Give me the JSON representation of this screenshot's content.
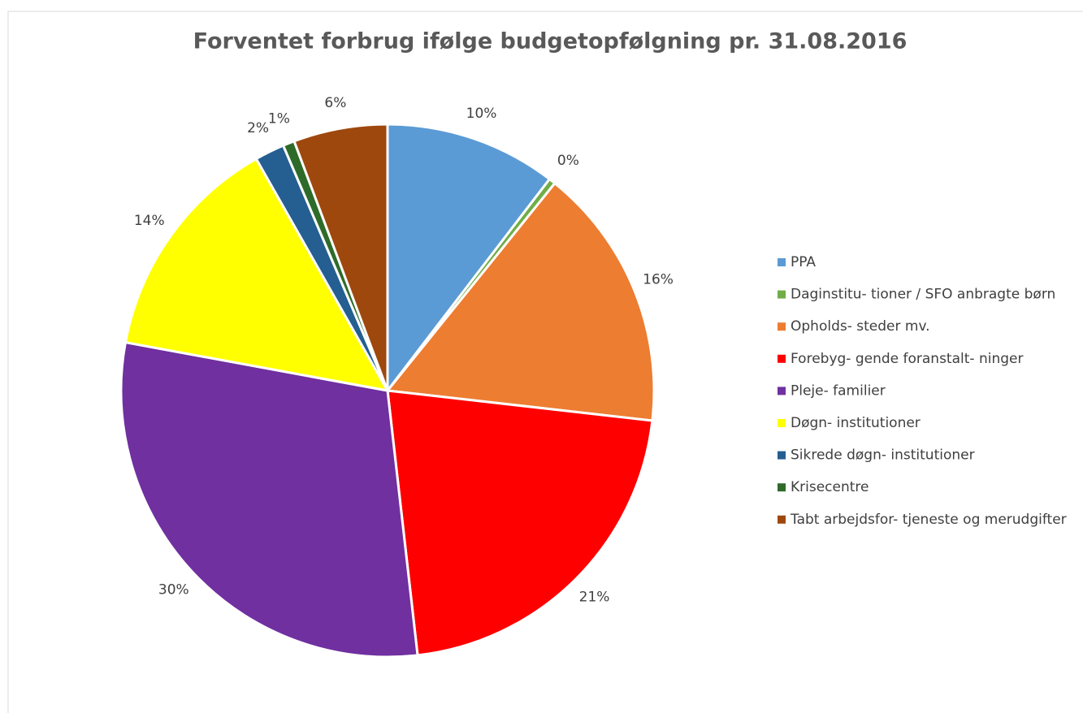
{
  "chart_data": {
    "type": "pie",
    "title": "Forventet forbrug ifølge budgetopfølgning pr. 31.08.2016",
    "categories": [
      "PPA",
      "Daginstitu- tioner / SFO anbragte børn",
      "Opholds- steder mv.",
      "Forebyg- gende foranstalt- ninger",
      "Pleje- familier",
      "Døgn- institutioner",
      "Sikrede døgn- institutioner",
      "Krisecentre",
      "Tabt arbejdsfor- tjeneste og merudgifter"
    ],
    "values": [
      10.4,
      0.4,
      16.0,
      21.4,
      29.7,
      13.9,
      1.8,
      0.7,
      5.7
    ],
    "value_labels": [
      "10%",
      "0%",
      "16%",
      "21%",
      "30%",
      "14%",
      "2%",
      "1%",
      "6%"
    ],
    "colors": [
      "#5b9bd5",
      "#70ad47",
      "#ed7d31",
      "#ff0000",
      "#7030a0",
      "#ffff00",
      "#255e91",
      "#2e6b2a",
      "#9e480e"
    ],
    "legend": "right"
  }
}
